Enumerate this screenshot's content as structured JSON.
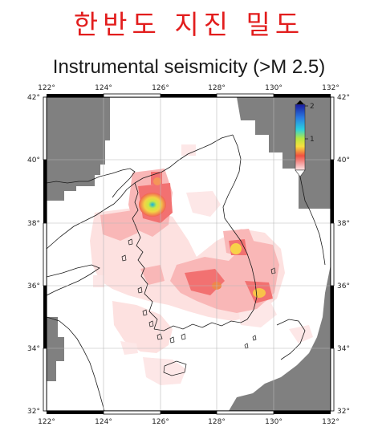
{
  "title_korean": "한반도 지진 밀도",
  "title_english": "Instrumental seismicity (>M 2.5)",
  "lon_ticks": [
    "122°",
    "124°",
    "126°",
    "128°",
    "130°",
    "132°"
  ],
  "lat_ticks": [
    "42°",
    "40°",
    "38°",
    "36°",
    "34°",
    "32°"
  ],
  "colorbar": {
    "ticks": [
      "2",
      "1"
    ]
  },
  "map_extent": {
    "lon_min": 122,
    "lon_max": 132,
    "lat_min": 32,
    "lat_max": 42
  }
}
